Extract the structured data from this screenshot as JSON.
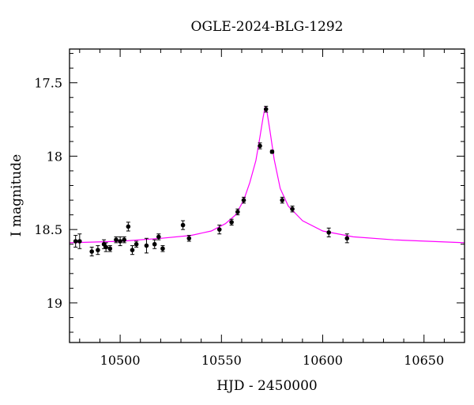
{
  "chart_data": {
    "type": "scatter",
    "title": "OGLE-2024-BLG-1292",
    "xlabel": "HJD - 2450000",
    "ylabel": "I magnitude",
    "xlim": [
      10475,
      10670
    ],
    "ylim": [
      19.27,
      17.27
    ],
    "y_inverted": true,
    "x_ticks": [
      10500,
      10550,
      10600,
      10650
    ],
    "y_ticks": [
      17.5,
      18,
      18.5,
      19
    ],
    "x_tick_labels": [
      "10500",
      "10550",
      "10600",
      "10650"
    ],
    "y_tick_labels": [
      "17.5",
      "18",
      "18.5",
      "19"
    ],
    "grid": false,
    "colors": {
      "model": "#ff00ff",
      "points": "#000000"
    },
    "observations": [
      {
        "x": 10478,
        "y": 18.58,
        "err": 0.04
      },
      {
        "x": 10480,
        "y": 18.58,
        "err": 0.05
      },
      {
        "x": 10486,
        "y": 18.65,
        "err": 0.03
      },
      {
        "x": 10489,
        "y": 18.64,
        "err": 0.03
      },
      {
        "x": 10492,
        "y": 18.6,
        "err": 0.03
      },
      {
        "x": 10493,
        "y": 18.62,
        "err": 0.03
      },
      {
        "x": 10495,
        "y": 18.63,
        "err": 0.02
      },
      {
        "x": 10498,
        "y": 18.57,
        "err": 0.02
      },
      {
        "x": 10500,
        "y": 18.58,
        "err": 0.03
      },
      {
        "x": 10502,
        "y": 18.57,
        "err": 0.02
      },
      {
        "x": 10504,
        "y": 18.48,
        "err": 0.03
      },
      {
        "x": 10506,
        "y": 18.64,
        "err": 0.03
      },
      {
        "x": 10508,
        "y": 18.6,
        "err": 0.02
      },
      {
        "x": 10513,
        "y": 18.61,
        "err": 0.05
      },
      {
        "x": 10517,
        "y": 18.6,
        "err": 0.03
      },
      {
        "x": 10519,
        "y": 18.55,
        "err": 0.02
      },
      {
        "x": 10521,
        "y": 18.63,
        "err": 0.02
      },
      {
        "x": 10531,
        "y": 18.47,
        "err": 0.03
      },
      {
        "x": 10534,
        "y": 18.56,
        "err": 0.02
      },
      {
        "x": 10549,
        "y": 18.5,
        "err": 0.03
      },
      {
        "x": 10555,
        "y": 18.45,
        "err": 0.02
      },
      {
        "x": 10558,
        "y": 18.38,
        "err": 0.02
      },
      {
        "x": 10561,
        "y": 18.3,
        "err": 0.02
      },
      {
        "x": 10569,
        "y": 17.93,
        "err": 0.02
      },
      {
        "x": 10572,
        "y": 17.68,
        "err": 0.02
      },
      {
        "x": 10575,
        "y": 17.97,
        "err": 0.01
      },
      {
        "x": 10580,
        "y": 18.3,
        "err": 0.02
      },
      {
        "x": 10585,
        "y": 18.36,
        "err": 0.02
      },
      {
        "x": 10603,
        "y": 18.52,
        "err": 0.03
      },
      {
        "x": 10612,
        "y": 18.56,
        "err": 0.03
      }
    ],
    "model": [
      {
        "x": 10475,
        "y": 18.59
      },
      {
        "x": 10500,
        "y": 18.58
      },
      {
        "x": 10520,
        "y": 18.56
      },
      {
        "x": 10535,
        "y": 18.54
      },
      {
        "x": 10545,
        "y": 18.51
      },
      {
        "x": 10552,
        "y": 18.46
      },
      {
        "x": 10557,
        "y": 18.4
      },
      {
        "x": 10561,
        "y": 18.3
      },
      {
        "x": 10564,
        "y": 18.18
      },
      {
        "x": 10567,
        "y": 18.03
      },
      {
        "x": 10569,
        "y": 17.87
      },
      {
        "x": 10570.5,
        "y": 17.74
      },
      {
        "x": 10571.5,
        "y": 17.67
      },
      {
        "x": 10572.5,
        "y": 17.7
      },
      {
        "x": 10574,
        "y": 17.83
      },
      {
        "x": 10576,
        "y": 18.02
      },
      {
        "x": 10579,
        "y": 18.22
      },
      {
        "x": 10583,
        "y": 18.34
      },
      {
        "x": 10590,
        "y": 18.44
      },
      {
        "x": 10600,
        "y": 18.51
      },
      {
        "x": 10615,
        "y": 18.55
      },
      {
        "x": 10635,
        "y": 18.57
      },
      {
        "x": 10670,
        "y": 18.59
      }
    ]
  }
}
